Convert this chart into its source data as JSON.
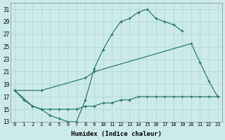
{
  "xlabel": "Humidex (Indice chaleur)",
  "bg_color": "#cceaea",
  "grid_color": "#aad4d4",
  "line_color": "#1a6e6a",
  "xlim": [
    -0.5,
    23.5
  ],
  "ylim": [
    13,
    32
  ],
  "yticks": [
    13,
    15,
    17,
    19,
    21,
    23,
    25,
    27,
    29,
    31
  ],
  "xticks": [
    0,
    1,
    2,
    3,
    4,
    5,
    6,
    7,
    8,
    9,
    10,
    11,
    12,
    13,
    14,
    15,
    16,
    17,
    18,
    19,
    20,
    21,
    22,
    23
  ],
  "line1_x": [
    0,
    1,
    2,
    3,
    4,
    5,
    6,
    7,
    8,
    9,
    10,
    11,
    12,
    13,
    14,
    15,
    16,
    17,
    18,
    19
  ],
  "line1_y": [
    18,
    16.5,
    15.5,
    15.0,
    14.0,
    13.5,
    13.0,
    13.0,
    16.5,
    21.5,
    24.5,
    27.0,
    29.0,
    29.5,
    30.5,
    31.0,
    29.5,
    29.0,
    28.5,
    27.5
  ],
  "line2_x": [
    0,
    3,
    8,
    9,
    20,
    21,
    22,
    23
  ],
  "line2_y": [
    18,
    18,
    20.0,
    21.0,
    25.5,
    22.5,
    19.5,
    17.0
  ],
  "line3_x": [
    0,
    2,
    3,
    4,
    5,
    6,
    7,
    8,
    9,
    10,
    11,
    12,
    13,
    14,
    15,
    16,
    17,
    18,
    19,
    20,
    21,
    22,
    23
  ],
  "line3_y": [
    18,
    15.5,
    15.0,
    15.0,
    15.0,
    15.0,
    15.0,
    15.5,
    15.5,
    16.0,
    16.0,
    16.5,
    16.5,
    17.0,
    17.0,
    17.0,
    17.0,
    17.0,
    17.0,
    17.0,
    17.0,
    17.0,
    17.0
  ]
}
